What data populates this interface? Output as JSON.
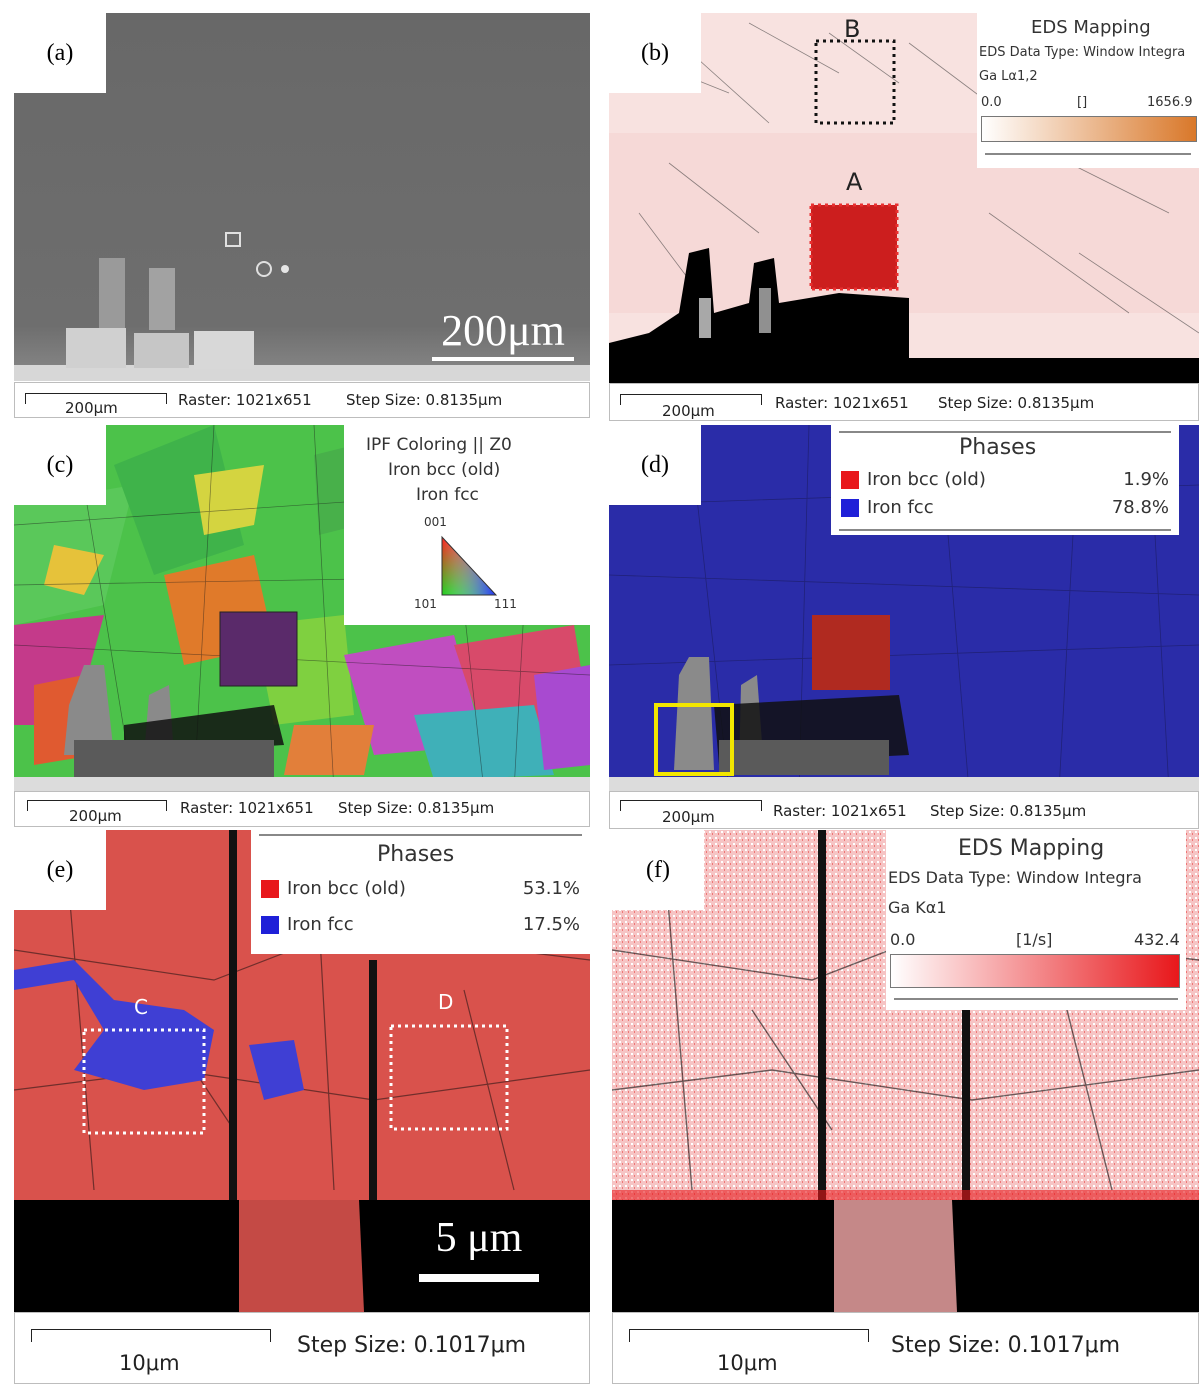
{
  "panels": {
    "a": {
      "label": "(a)",
      "scalebar_text": "200μm",
      "footer": {
        "scale": "200μm",
        "raster": "Raster: 1021x651",
        "step": "Step Size: 0.8135μm"
      }
    },
    "b": {
      "label": "(b)",
      "footer": {
        "scale": "200μm",
        "raster": "Raster: 1021x651",
        "step": "Step Size: 0.8135μm"
      },
      "legend": {
        "title": "EDS Mapping",
        "datatype": "EDS Data Type: Window Integra",
        "element": "Ga Lα1,2",
        "min": "0.0",
        "unit": "[]",
        "max": "1656.9"
      },
      "regions": {
        "A": "A",
        "B": "B"
      }
    },
    "c": {
      "label": "(c)",
      "footer": {
        "scale": "200μm",
        "raster": "Raster: 1021x651",
        "step": "Step Size: 0.8135μm"
      },
      "legend": {
        "line1": "IPF Coloring || Z0",
        "line2": "Iron bcc (old)",
        "line3": "Iron fcc",
        "v001": "001",
        "v101": "101",
        "v111": "111"
      }
    },
    "d": {
      "label": "(d)",
      "footer": {
        "scale": "200μm",
        "raster": "Raster: 1021x651",
        "step": "Step Size: 0.8135μm"
      },
      "legend": {
        "title": "Phases",
        "phase1": "Iron bcc (old)",
        "pct1": "1.9%",
        "phase2": "Iron fcc",
        "pct2": "78.8%"
      }
    },
    "e": {
      "label": "(e)",
      "scalebar_text": "5 μm",
      "footer": {
        "scale": "10μm",
        "step": "Step Size: 0.1017μm"
      },
      "legend": {
        "title": "Phases",
        "phase1": "Iron bcc (old)",
        "pct1": "53.1%",
        "phase2": "Iron fcc",
        "pct2": "17.5%"
      },
      "regions": {
        "C": "C",
        "D": "D"
      }
    },
    "f": {
      "label": "(f)",
      "footer": {
        "scale": "10μm",
        "step": "Step Size: 0.1017μm"
      },
      "legend": {
        "title": "EDS Mapping",
        "datatype": "EDS Data Type: Window Integra",
        "element": "Ga Kα1",
        "min": "0.0",
        "unit": "[1/s]",
        "max": "432.4"
      }
    }
  },
  "colors": {
    "bcc": "#e8171b",
    "fcc": "#1f20d8",
    "ga_high_b": "#d9782a",
    "ga_high_f": "#e8171b",
    "highlight": "#f2e600"
  }
}
